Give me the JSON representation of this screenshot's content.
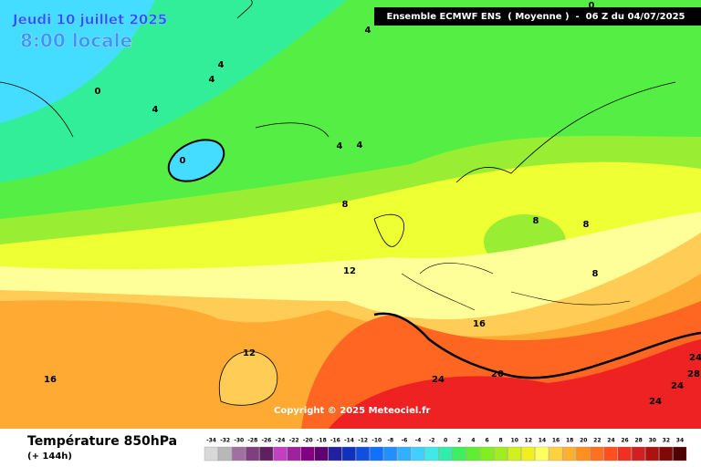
{
  "date_label": "Jeudi 10 juillet 2025",
  "time_label": "8:00 locale",
  "header": "Ensemble ECMWF ENS  ( Moyenne )  -  06 Z du 04/07/2025",
  "copyright": "Copyright © 2025 Meteociel.fr",
  "footer": {
    "title": "Température 850hPa",
    "subtitle": "(+ 144h)"
  },
  "contour_labels": [
    "0",
    "4",
    "4",
    "4",
    "0",
    "4",
    "0",
    "4",
    "4",
    "8",
    "8",
    "8",
    "8",
    "12",
    "12",
    "16",
    "16",
    "20",
    "24",
    "24",
    "28",
    "24",
    "24"
  ],
  "scale": {
    "ticks": [
      -34,
      -32,
      -30,
      -28,
      -26,
      -24,
      -22,
      -20,
      -18,
      -16,
      -14,
      -12,
      -10,
      -8,
      -6,
      -4,
      -2,
      0,
      2,
      4,
      6,
      8,
      10,
      12,
      14,
      16,
      18,
      20,
      22,
      24,
      26,
      28,
      30,
      32,
      34
    ],
    "colors": [
      "#d8d8d8",
      "#b8b8b8",
      "#a070a0",
      "#804080",
      "#602060",
      "#c040c0",
      "#a020a0",
      "#800080",
      "#600070",
      "#2020a0",
      "#1030c0",
      "#1050e0",
      "#1070ff",
      "#2090ff",
      "#30b0ff",
      "#40d0ff",
      "#40e8e8",
      "#30eeaa",
      "#40ee60",
      "#60ee30",
      "#80ee20",
      "#a0ee20",
      "#d0f020",
      "#f0f020",
      "#ffff60",
      "#ffd040",
      "#ffb030",
      "#ff9020",
      "#ff7020",
      "#ff5020",
      "#f03020",
      "#d02020",
      "#b01010",
      "#800808",
      "#500000"
    ]
  }
}
